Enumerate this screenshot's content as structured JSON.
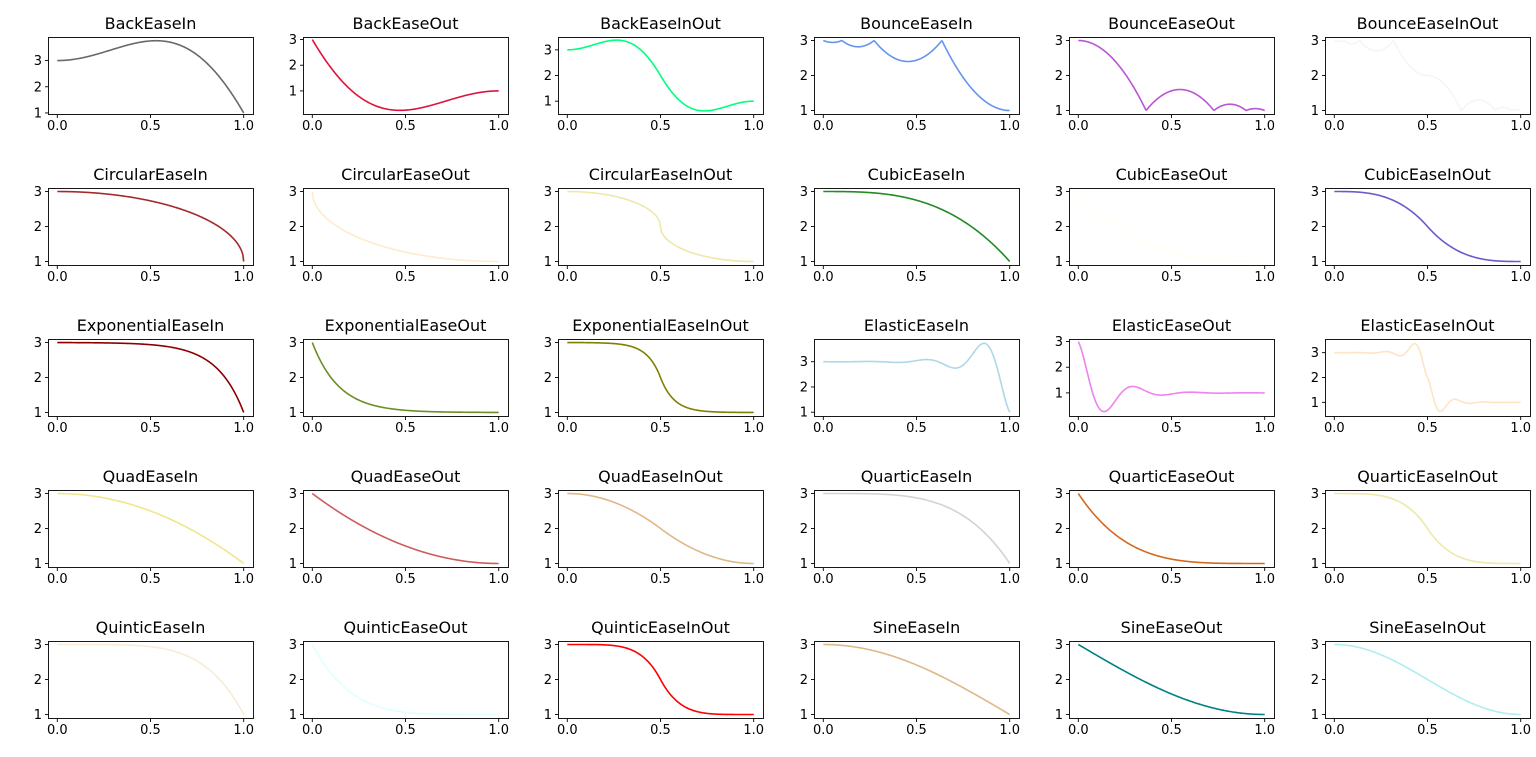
{
  "figure": {
    "x_ticks": [
      "0.0",
      "0.5",
      "1.0"
    ],
    "x_range": [
      0,
      1
    ]
  },
  "chart_data": [
    {
      "type": "line",
      "title": "BackEaseIn",
      "easing": "BackEaseIn",
      "color": "#696969",
      "ylim": [
        0.96,
        3.9
      ],
      "yticks": [
        1,
        2,
        3
      ]
    },
    {
      "type": "line",
      "title": "BackEaseOut",
      "easing": "BackEaseOut",
      "color": "#dc143c",
      "ylim": [
        0.1,
        3.1
      ],
      "yticks": [
        1,
        2,
        3
      ]
    },
    {
      "type": "line",
      "title": "BackEaseInOut",
      "easing": "BackEaseInOut",
      "color": "#00ff7f",
      "ylim": [
        0.5,
        3.5
      ],
      "yticks": [
        1,
        2,
        3
      ]
    },
    {
      "type": "line",
      "title": "BounceEaseIn",
      "easing": "BounceEaseIn",
      "color": "#6495ed",
      "ylim": [
        0.9,
        3.1
      ],
      "yticks": [
        1,
        2,
        3
      ]
    },
    {
      "type": "line",
      "title": "BounceEaseOut",
      "easing": "BounceEaseOut",
      "color": "#ba55d3",
      "ylim": [
        0.9,
        3.1
      ],
      "yticks": [
        1,
        2,
        3
      ]
    },
    {
      "type": "line",
      "title": "BounceEaseInOut",
      "easing": "BounceEaseInOut",
      "color": "#f5f5f5",
      "ylim": [
        0.9,
        3.1
      ],
      "yticks": [
        1,
        2,
        3
      ]
    },
    {
      "type": "line",
      "title": "CircularEaseIn",
      "easing": "CircularEaseIn",
      "color": "#a52a2a",
      "ylim": [
        0.9,
        3.1
      ],
      "yticks": [
        1,
        2,
        3
      ]
    },
    {
      "type": "line",
      "title": "CircularEaseOut",
      "easing": "CircularEaseOut",
      "color": "#ffebcd",
      "ylim": [
        0.9,
        3.1
      ],
      "yticks": [
        1,
        2,
        3
      ]
    },
    {
      "type": "line",
      "title": "CircularEaseInOut",
      "easing": "CircularEaseInOut",
      "color": "#eee8aa",
      "ylim": [
        0.9,
        3.1
      ],
      "yticks": [
        1,
        2,
        3
      ]
    },
    {
      "type": "line",
      "title": "CubicEaseIn",
      "easing": "CubicEaseIn",
      "color": "#228b22",
      "ylim": [
        0.9,
        3.1
      ],
      "yticks": [
        1,
        2,
        3
      ]
    },
    {
      "type": "line",
      "title": "CubicEaseOut",
      "easing": "CubicEaseOut",
      "color": "#fffff0",
      "ylim": [
        0.9,
        3.1
      ],
      "yticks": [
        1,
        2,
        3
      ]
    },
    {
      "type": "line",
      "title": "CubicEaseInOut",
      "easing": "CubicEaseInOut",
      "color": "#6a5acd",
      "ylim": [
        0.9,
        3.1
      ],
      "yticks": [
        1,
        2,
        3
      ]
    },
    {
      "type": "line",
      "title": "ExponentialEaseIn",
      "easing": "ExponentialEaseIn",
      "color": "#8b0000",
      "ylim": [
        0.9,
        3.1
      ],
      "yticks": [
        1,
        2,
        3
      ]
    },
    {
      "type": "line",
      "title": "ExponentialEaseOut",
      "easing": "ExponentialEaseOut",
      "color": "#6b8e23",
      "ylim": [
        0.9,
        3.1
      ],
      "yticks": [
        1,
        2,
        3
      ]
    },
    {
      "type": "line",
      "title": "ExponentialEaseInOut",
      "easing": "ExponentialEaseInOut",
      "color": "#808000",
      "ylim": [
        0.9,
        3.1
      ],
      "yticks": [
        1,
        2,
        3
      ]
    },
    {
      "type": "line",
      "title": "ElasticEaseIn",
      "easing": "ElasticEaseIn",
      "color": "#add8e6",
      "ylim": [
        0.85,
        3.9
      ],
      "yticks": [
        1,
        2,
        3
      ]
    },
    {
      "type": "line",
      "title": "ElasticEaseOut",
      "easing": "ElasticEaseOut",
      "color": "#ee82ee",
      "ylim": [
        0.1,
        3.1
      ],
      "yticks": [
        1,
        2,
        3
      ]
    },
    {
      "type": "line",
      "title": "ElasticEaseInOut",
      "easing": "ElasticEaseInOut",
      "color": "#ffe4c4",
      "ylim": [
        0.45,
        3.55
      ],
      "yticks": [
        1,
        2,
        3
      ]
    },
    {
      "type": "line",
      "title": "QuadEaseIn",
      "easing": "QuadEaseIn",
      "color": "#f0e68c",
      "ylim": [
        0.9,
        3.1
      ],
      "yticks": [
        1,
        2,
        3
      ]
    },
    {
      "type": "line",
      "title": "QuadEaseOut",
      "easing": "QuadEaseOut",
      "color": "#cd5c5c",
      "ylim": [
        0.9,
        3.1
      ],
      "yticks": [
        1,
        2,
        3
      ]
    },
    {
      "type": "line",
      "title": "QuadEaseInOut",
      "easing": "QuadEaseInOut",
      "color": "#deb887",
      "ylim": [
        0.9,
        3.1
      ],
      "yticks": [
        1,
        2,
        3
      ]
    },
    {
      "type": "line",
      "title": "QuarticEaseIn",
      "easing": "QuarticEaseIn",
      "color": "#d3d3d3",
      "ylim": [
        0.9,
        3.1
      ],
      "yticks": [
        1,
        2,
        3
      ]
    },
    {
      "type": "line",
      "title": "QuarticEaseOut",
      "easing": "QuarticEaseOut",
      "color": "#d2691e",
      "ylim": [
        0.9,
        3.1
      ],
      "yticks": [
        1,
        2,
        3
      ]
    },
    {
      "type": "line",
      "title": "QuarticEaseInOut",
      "easing": "QuarticEaseInOut",
      "color": "#eee8aa",
      "ylim": [
        0.9,
        3.1
      ],
      "yticks": [
        1,
        2,
        3
      ]
    },
    {
      "type": "line",
      "title": "QuinticEaseIn",
      "easing": "QuinticEaseIn",
      "color": "#faebd7",
      "ylim": [
        0.9,
        3.1
      ],
      "yticks": [
        1,
        2,
        3
      ]
    },
    {
      "type": "line",
      "title": "QuinticEaseOut",
      "easing": "QuinticEaseOut",
      "color": "#e0ffff",
      "ylim": [
        0.9,
        3.1
      ],
      "yticks": [
        1,
        2,
        3
      ]
    },
    {
      "type": "line",
      "title": "QuinticEaseInOut",
      "easing": "QuinticEaseInOut",
      "color": "#ff0000",
      "ylim": [
        0.9,
        3.1
      ],
      "yticks": [
        1,
        2,
        3
      ]
    },
    {
      "type": "line",
      "title": "SineEaseIn",
      "easing": "SineEaseIn",
      "color": "#deb887",
      "ylim": [
        0.9,
        3.1
      ],
      "yticks": [
        1,
        2,
        3
      ]
    },
    {
      "type": "line",
      "title": "SineEaseOut",
      "easing": "SineEaseOut",
      "color": "#008080",
      "ylim": [
        0.9,
        3.1
      ],
      "yticks": [
        1,
        2,
        3
      ]
    },
    {
      "type": "line",
      "title": "SineEaseInOut",
      "easing": "SineEaseInOut",
      "color": "#afeeee",
      "ylim": [
        0.9,
        3.1
      ],
      "yticks": [
        1,
        2,
        3
      ]
    }
  ]
}
